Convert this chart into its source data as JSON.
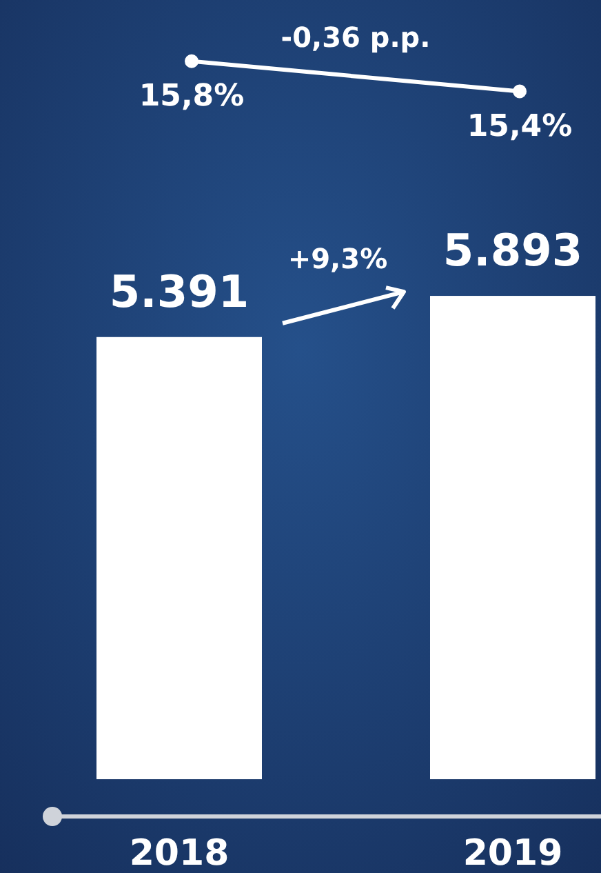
{
  "chart_data": [
    {
      "type": "line",
      "categories": [
        null,
        null
      ],
      "tick_labels": false,
      "marker": "circle",
      "series": [
        {
          "color": "#ffffff",
          "values": [
            15.8,
            15.4
          ],
          "value_labels": [
            "15,8%",
            "15,4%"
          ]
        }
      ],
      "annotations": [
        "-0,36 p.p."
      ]
    },
    {
      "type": "bar",
      "categories": [
        "2018",
        "2019"
      ],
      "tick_labels": "x",
      "series": [
        {
          "color": "#ffffff",
          "values": [
            5391,
            5893
          ],
          "value_labels": [
            "5.391",
            "5.893"
          ]
        }
      ],
      "annotations": [
        "+9,3%"
      ]
    }
  ]
}
